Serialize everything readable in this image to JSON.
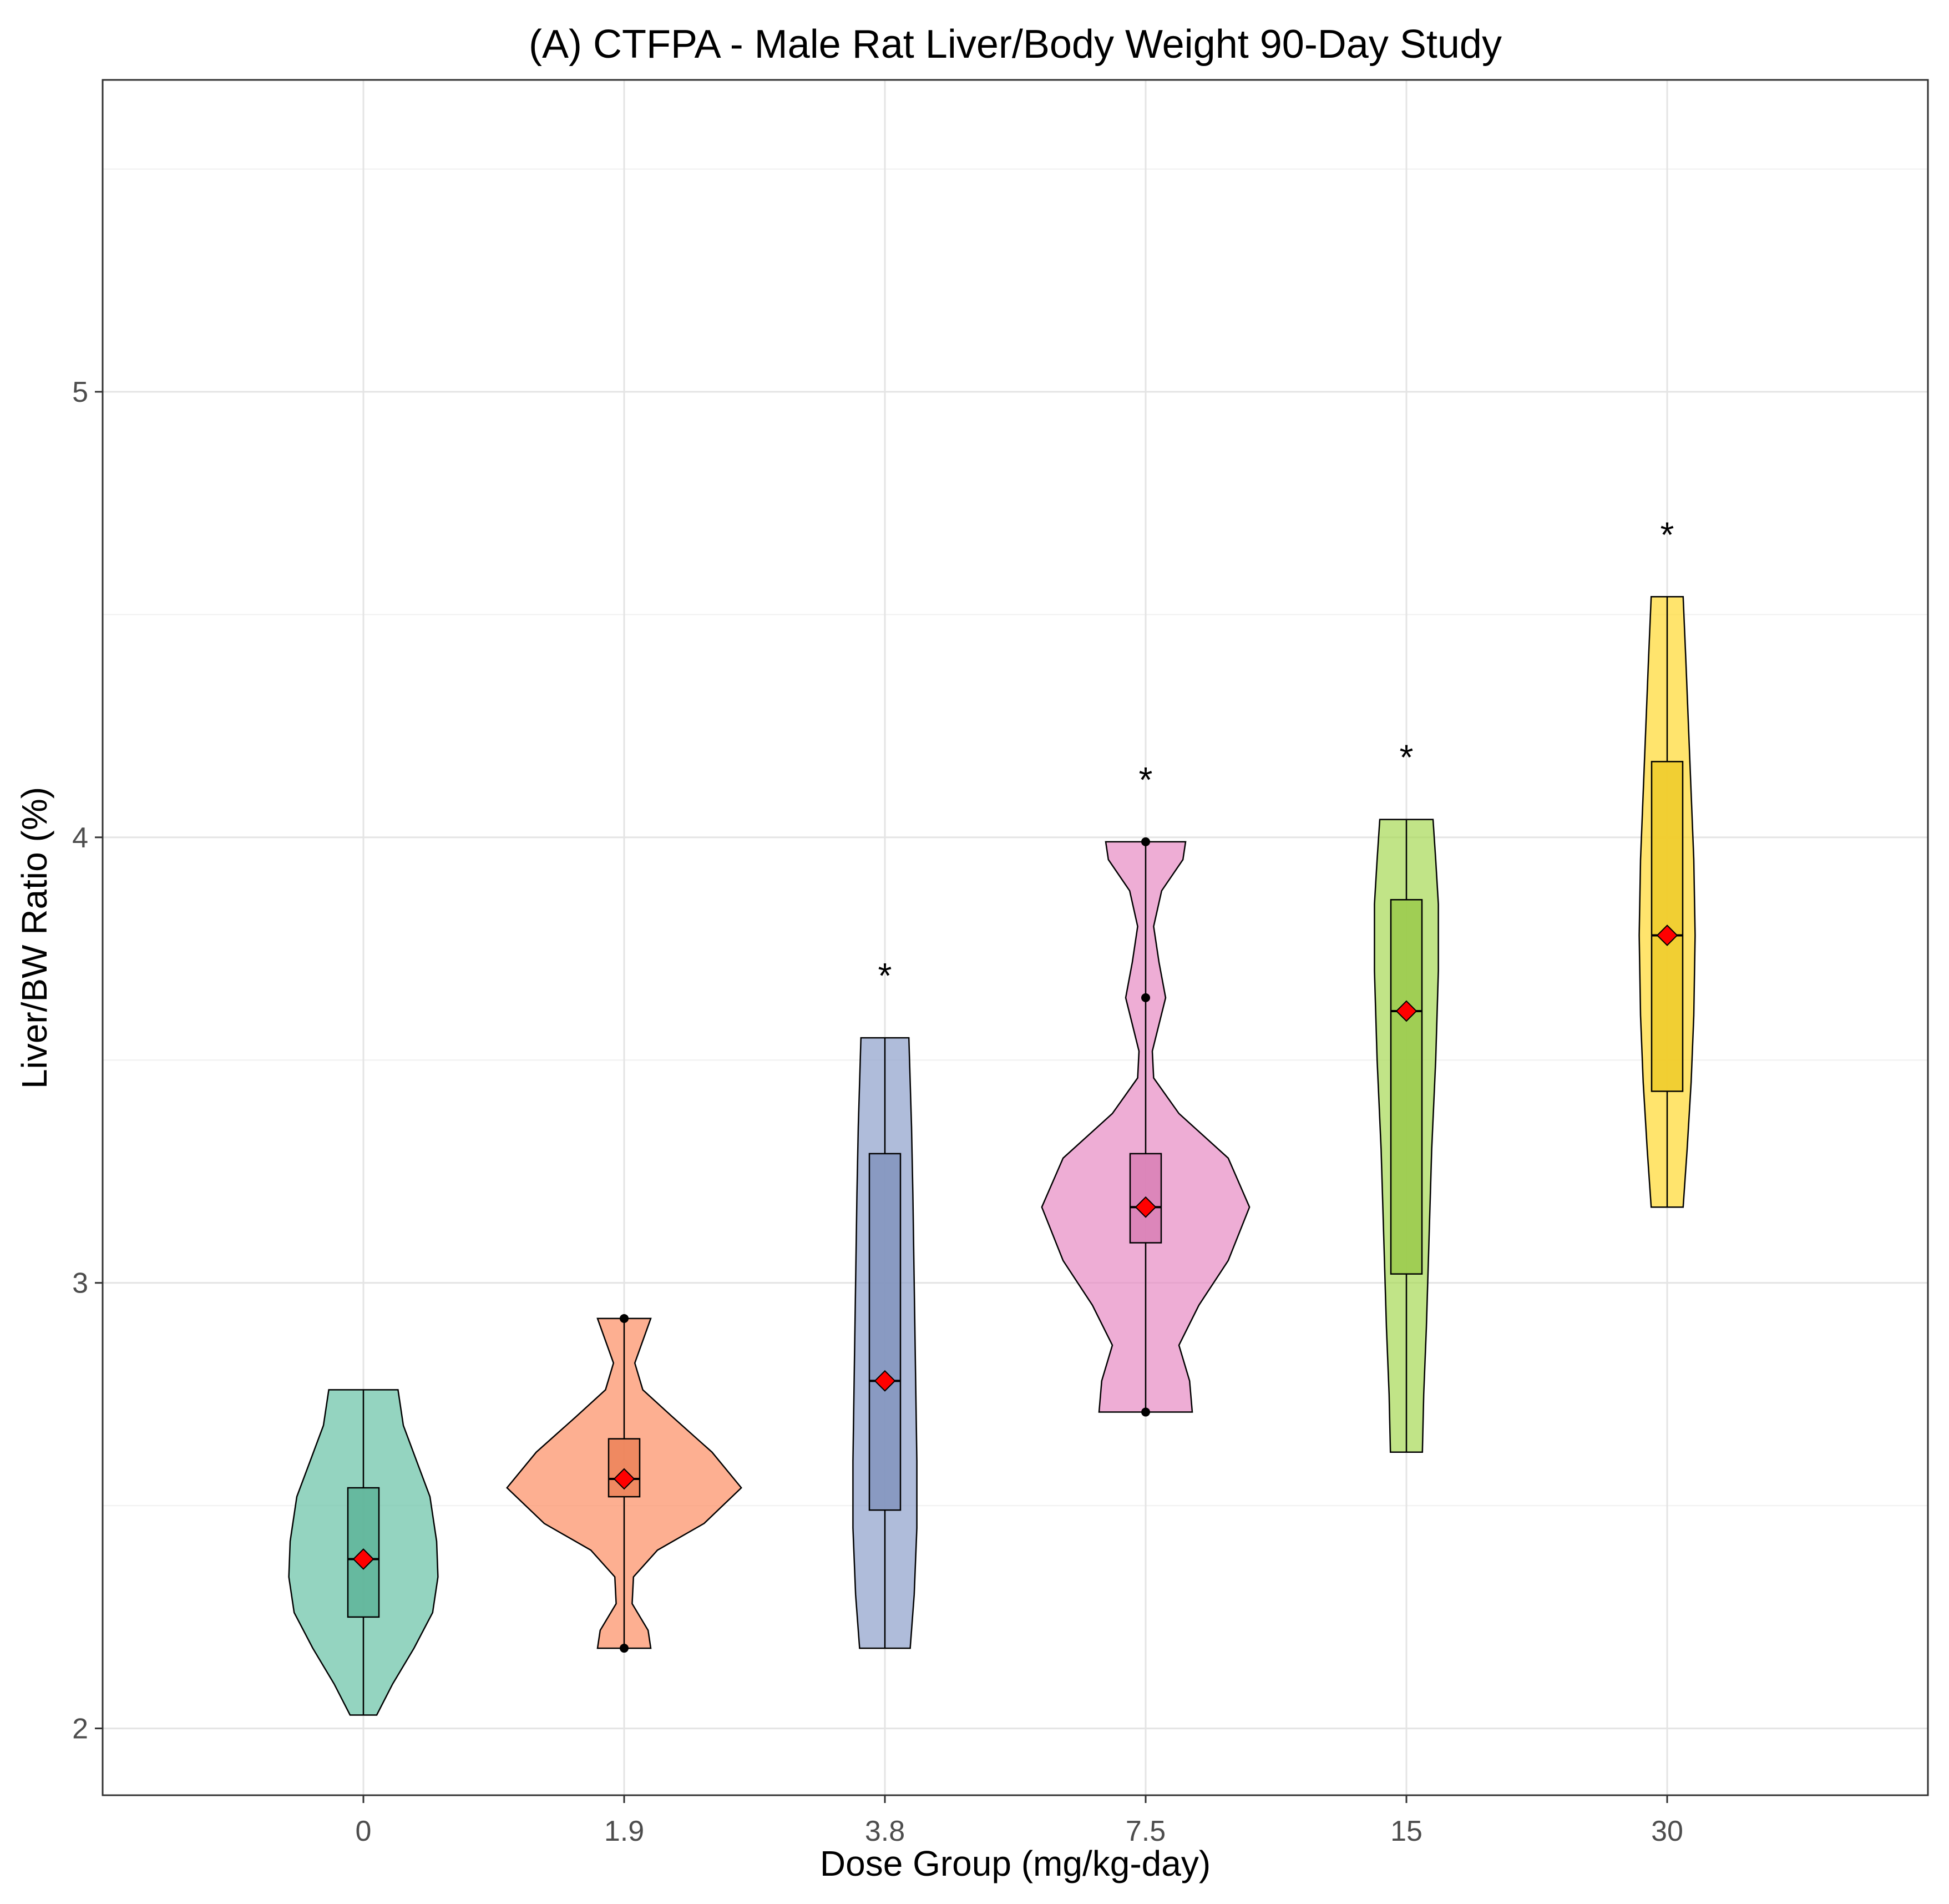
{
  "chart_data": {
    "type": "violin",
    "title": "(A) CTFPA - Male Rat Liver/Body Weight 90-Day Study",
    "xlabel": "Dose Group (mg/kg-day)",
    "ylabel": "Liver/BW Ratio (%)",
    "ylim": [
      1.85,
      5.7
    ],
    "y_ticks": [
      2,
      3,
      4,
      5
    ],
    "y_minor_ticks": [
      2.5,
      3.5,
      4.5,
      5.5
    ],
    "grid": true,
    "categories": [
      "0",
      "1.9",
      "3.8",
      "7.5",
      "15",
      "30"
    ],
    "groups": [
      {
        "dose": "0",
        "color": "#66c2a5",
        "min": 2.03,
        "q1": 2.25,
        "median": 2.38,
        "q3": 2.54,
        "max": 2.76,
        "mean": 2.38,
        "points": [],
        "significance": "",
        "violin_profile": [
          [
            2.03,
            0.1
          ],
          [
            2.1,
            0.22
          ],
          [
            2.18,
            0.38
          ],
          [
            2.26,
            0.52
          ],
          [
            2.34,
            0.56
          ],
          [
            2.42,
            0.55
          ],
          [
            2.52,
            0.5
          ],
          [
            2.6,
            0.4
          ],
          [
            2.68,
            0.3
          ],
          [
            2.76,
            0.26
          ]
        ]
      },
      {
        "dose": "1.9",
        "color": "#fc8d62",
        "min": 2.18,
        "q1": 2.52,
        "median": 2.56,
        "q3": 2.65,
        "max": 2.92,
        "mean": 2.56,
        "points": [
          2.18,
          2.92
        ],
        "significance": "",
        "violin_profile": [
          [
            2.18,
            0.2
          ],
          [
            2.22,
            0.18
          ],
          [
            2.28,
            0.06
          ],
          [
            2.34,
            0.07
          ],
          [
            2.4,
            0.25
          ],
          [
            2.46,
            0.6
          ],
          [
            2.54,
            0.88
          ],
          [
            2.62,
            0.66
          ],
          [
            2.7,
            0.36
          ],
          [
            2.76,
            0.14
          ],
          [
            2.82,
            0.08
          ],
          [
            2.87,
            0.14
          ],
          [
            2.92,
            0.2
          ]
        ]
      },
      {
        "dose": "3.8",
        "color": "#8da0cb",
        "min": 2.18,
        "q1": 2.49,
        "median": 2.78,
        "q3": 3.29,
        "max": 3.55,
        "mean": 2.78,
        "points": [],
        "significance": "*",
        "violin_profile": [
          [
            2.18,
            0.19
          ],
          [
            2.3,
            0.22
          ],
          [
            2.45,
            0.24
          ],
          [
            2.6,
            0.24
          ],
          [
            2.8,
            0.23
          ],
          [
            3.0,
            0.22
          ],
          [
            3.2,
            0.21
          ],
          [
            3.35,
            0.2
          ],
          [
            3.45,
            0.19
          ],
          [
            3.55,
            0.18
          ]
        ]
      },
      {
        "dose": "7.5",
        "color": "#e78ac3",
        "min": 2.71,
        "q1": 3.09,
        "median": 3.17,
        "q3": 3.29,
        "max": 3.99,
        "mean": 3.17,
        "points": [
          2.71,
          3.64,
          3.99
        ],
        "significance": "*",
        "violin_profile": [
          [
            2.71,
            0.35
          ],
          [
            2.78,
            0.33
          ],
          [
            2.86,
            0.25
          ],
          [
            2.95,
            0.4
          ],
          [
            3.05,
            0.62
          ],
          [
            3.17,
            0.78
          ],
          [
            3.28,
            0.62
          ],
          [
            3.38,
            0.25
          ],
          [
            3.46,
            0.06
          ],
          [
            3.52,
            0.05
          ],
          [
            3.58,
            0.1
          ],
          [
            3.64,
            0.15
          ],
          [
            3.72,
            0.1
          ],
          [
            3.8,
            0.06
          ],
          [
            3.88,
            0.12
          ],
          [
            3.95,
            0.28
          ],
          [
            3.99,
            0.3
          ]
        ]
      },
      {
        "dose": "15",
        "color": "#a6d854",
        "min": 2.62,
        "q1": 3.02,
        "median": 3.61,
        "q3": 3.86,
        "max": 4.04,
        "mean": 3.61,
        "points": [],
        "significance": "*",
        "violin_profile": [
          [
            2.62,
            0.12
          ],
          [
            2.75,
            0.13
          ],
          [
            2.9,
            0.15
          ],
          [
            3.1,
            0.17
          ],
          [
            3.3,
            0.19
          ],
          [
            3.5,
            0.22
          ],
          [
            3.7,
            0.24
          ],
          [
            3.85,
            0.24
          ],
          [
            3.95,
            0.22
          ],
          [
            4.04,
            0.2
          ]
        ]
      },
      {
        "dose": "30",
        "color": "#ffd92f",
        "min": 3.17,
        "q1": 3.43,
        "median": 3.78,
        "q3": 4.17,
        "max": 4.54,
        "mean": 3.78,
        "points": [],
        "significance": "*",
        "violin_profile": [
          [
            3.17,
            0.12
          ],
          [
            3.3,
            0.15
          ],
          [
            3.45,
            0.18
          ],
          [
            3.6,
            0.2
          ],
          [
            3.78,
            0.21
          ],
          [
            3.95,
            0.2
          ],
          [
            4.1,
            0.18
          ],
          [
            4.25,
            0.16
          ],
          [
            4.4,
            0.14
          ],
          [
            4.54,
            0.12
          ]
        ]
      }
    ]
  }
}
